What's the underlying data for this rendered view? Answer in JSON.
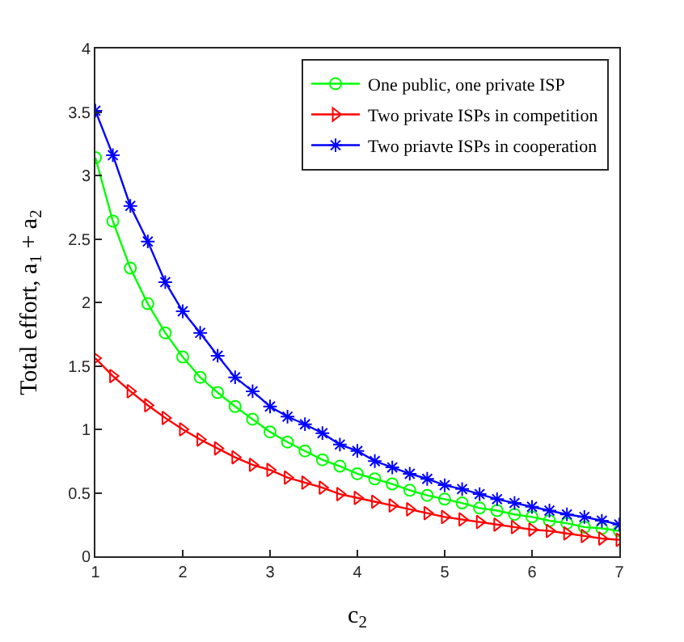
{
  "chart_data": {
    "type": "line",
    "xlabel": "c$_{2}$",
    "ylabel": "Total effort, a$_{1}$ + a$_{2}$",
    "x": [
      1.0,
      1.2,
      1.4,
      1.6,
      1.8,
      2.0,
      2.2,
      2.4,
      2.6,
      2.8,
      3.0,
      3.2,
      3.4,
      3.6,
      3.8,
      4.0,
      4.2,
      4.4,
      4.6,
      4.8,
      5.0,
      5.2,
      5.4,
      5.6,
      5.8,
      6.0,
      6.2,
      6.4,
      6.6,
      6.8,
      7.0
    ],
    "series": [
      {
        "name": "One public, one private ISP",
        "color": "#00ff00",
        "marker": "circle",
        "values": [
          3.14,
          2.64,
          2.27,
          1.99,
          1.76,
          1.57,
          1.41,
          1.29,
          1.18,
          1.08,
          0.98,
          0.9,
          0.83,
          0.76,
          0.71,
          0.65,
          0.61,
          0.57,
          0.52,
          0.48,
          0.45,
          0.42,
          0.38,
          0.36,
          0.33,
          0.31,
          0.28,
          0.26,
          0.23,
          0.22,
          0.2
        ]
      },
      {
        "name": "Two private ISPs in competition",
        "color": "#ff0000",
        "marker": "triangle",
        "values": [
          1.56,
          1.42,
          1.3,
          1.19,
          1.09,
          1.0,
          0.92,
          0.85,
          0.78,
          0.72,
          0.68,
          0.62,
          0.58,
          0.54,
          0.49,
          0.46,
          0.43,
          0.4,
          0.37,
          0.34,
          0.31,
          0.29,
          0.27,
          0.25,
          0.23,
          0.21,
          0.2,
          0.18,
          0.16,
          0.14,
          0.13
        ]
      },
      {
        "name": "Two priavte ISPs in cooperation",
        "color": "#0000ff",
        "marker": "cross",
        "values": [
          3.51,
          3.16,
          2.76,
          2.48,
          2.16,
          1.93,
          1.76,
          1.58,
          1.41,
          1.3,
          1.18,
          1.1,
          1.04,
          0.97,
          0.88,
          0.83,
          0.75,
          0.7,
          0.65,
          0.61,
          0.56,
          0.53,
          0.49,
          0.45,
          0.42,
          0.39,
          0.36,
          0.33,
          0.31,
          0.28,
          0.25
        ]
      }
    ],
    "xlim": [
      1,
      7
    ],
    "xticks": [
      1,
      2,
      3,
      4,
      5,
      6,
      7
    ],
    "ylim": [
      0,
      4
    ],
    "yticks": [
      0,
      0.5,
      1,
      1.5,
      2,
      2.5,
      3,
      3.5,
      4
    ],
    "legend": "top right",
    "line_style": "solid"
  }
}
